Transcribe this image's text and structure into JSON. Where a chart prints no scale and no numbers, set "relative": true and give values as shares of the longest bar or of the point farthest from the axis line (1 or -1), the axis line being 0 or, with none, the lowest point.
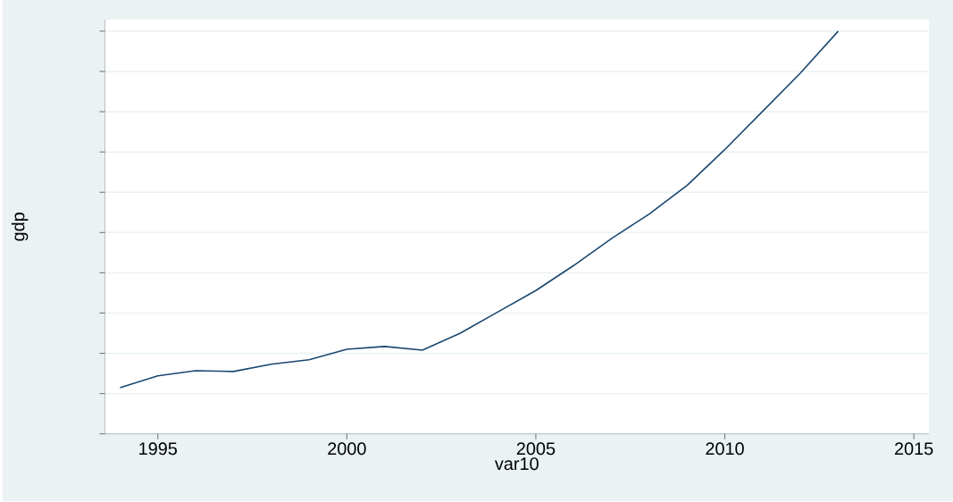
{
  "chart_data": {
    "type": "line",
    "xlabel": "var10",
    "ylabel": "gdp",
    "relative": true,
    "grid": "y",
    "x": [
      1994,
      1995,
      1996,
      1997,
      1998,
      1999,
      2000,
      2001,
      2002,
      2003,
      2004,
      2005,
      2006,
      2007,
      2008,
      2009,
      2010,
      2011,
      2012,
      2013
    ],
    "xlim": [
      1993.6,
      2015.4
    ],
    "xticks": [
      1995,
      2000,
      2005,
      2010,
      2015
    ],
    "series": [
      {
        "color": "#1a476f",
        "values": [
          0.115,
          0.144,
          0.157,
          0.155,
          0.173,
          0.184,
          0.21,
          0.217,
          0.208,
          0.25,
          0.303,
          0.356,
          0.418,
          0.485,
          0.546,
          0.617,
          0.706,
          0.801,
          0.896,
          1.0
        ]
      }
    ]
  }
}
